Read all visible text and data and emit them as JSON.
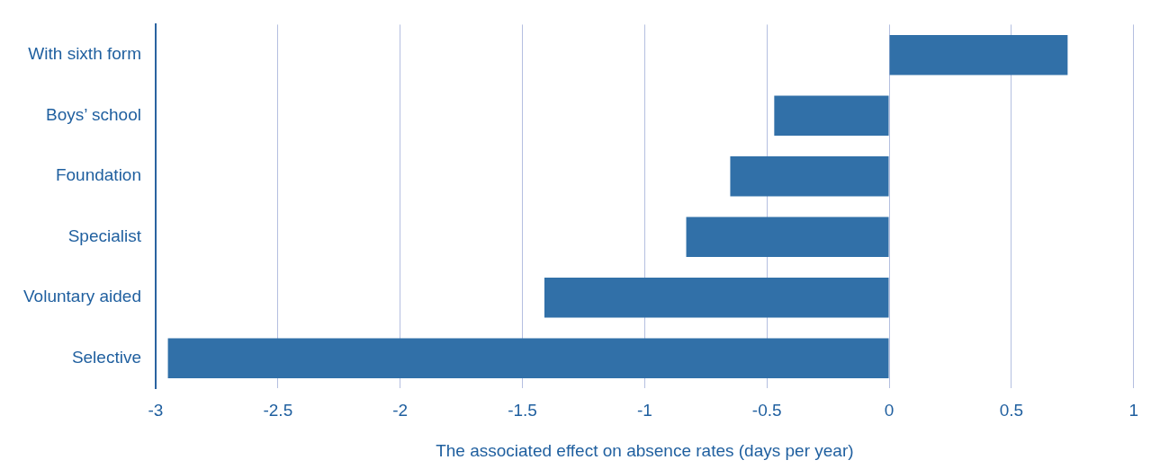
{
  "chart_data": {
    "type": "bar",
    "orientation": "horizontal",
    "xlabel": "The associated effect on absence rates (days per year)",
    "categories": [
      "With sixth form",
      "Boys’ school",
      "Foundation",
      "Specialist",
      "Voluntary aided",
      "Selective"
    ],
    "values": [
      0.73,
      -0.47,
      -0.65,
      -0.83,
      -1.41,
      -2.95
    ],
    "color": "#3170a8",
    "xlim": [
      -3,
      1
    ],
    "xticks": [
      -3,
      -2.5,
      -2,
      -1.5,
      -1,
      -0.5,
      0,
      0.5,
      1
    ],
    "grid": "x",
    "legend": false
  }
}
